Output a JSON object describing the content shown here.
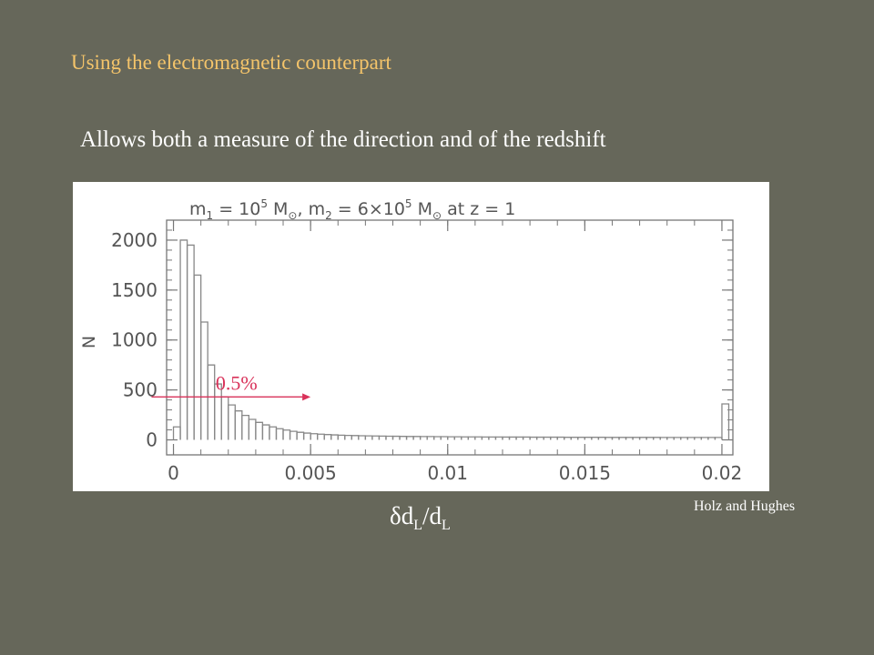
{
  "slide": {
    "title": "Using the electromagnetic counterpart",
    "subtitle": "Allows both a measure of the direction and of the redshift",
    "credit": "Holz and Hughes"
  },
  "xlabel": {
    "main": "δd",
    "sub": "L",
    "slash": "/d",
    "sub2": "L"
  },
  "chart_data": {
    "type": "bar",
    "title_parts": {
      "m1": "m",
      "m1_sub": "1",
      "eq1": " = 10",
      "exp1": "5",
      "unit1": " M",
      "sun1": "⊙",
      "sep": ",  ",
      "m2": "m",
      "m2_sub": "2",
      "eq2": " = 6×10",
      "exp2": "5",
      "unit2": " M",
      "sun2": "⊙",
      "tail": "  at  z = 1"
    },
    "ylabel": "N",
    "xlim": [
      -0.00025,
      0.0204
    ],
    "ylim": [
      -150,
      2200
    ],
    "xticks": [
      0,
      0.005,
      0.01,
      0.015,
      0.02
    ],
    "xtick_labels": [
      "0",
      "0.005",
      "0.01",
      "0.015",
      "0.02"
    ],
    "yticks": [
      0,
      500,
      1000,
      1500,
      2000
    ],
    "ytick_labels": [
      "0",
      "500",
      "1000",
      "1500",
      "2000"
    ],
    "bin_width": 0.00025,
    "values": [
      130,
      2000,
      1950,
      1650,
      1180,
      750,
      560,
      430,
      350,
      290,
      245,
      205,
      175,
      150,
      130,
      112,
      98,
      86,
      76,
      68,
      62,
      57,
      53,
      50,
      47,
      45,
      43,
      41,
      40,
      39,
      38,
      37,
      36,
      35,
      34,
      34,
      33,
      33,
      32,
      32,
      31,
      31,
      30,
      30,
      30,
      29,
      29,
      29,
      28,
      28,
      28,
      28,
      27,
      27,
      27,
      27,
      27,
      26,
      26,
      26,
      26,
      26,
      26,
      25,
      25,
      25,
      25,
      25,
      25,
      25,
      25,
      24,
      24,
      24,
      24,
      24,
      24,
      24,
      24,
      24,
      360
    ],
    "annotation": {
      "label": "0.5%",
      "color": "#d9325a",
      "y": 430,
      "x_start": -0.0008,
      "x_end": 0.005
    }
  }
}
